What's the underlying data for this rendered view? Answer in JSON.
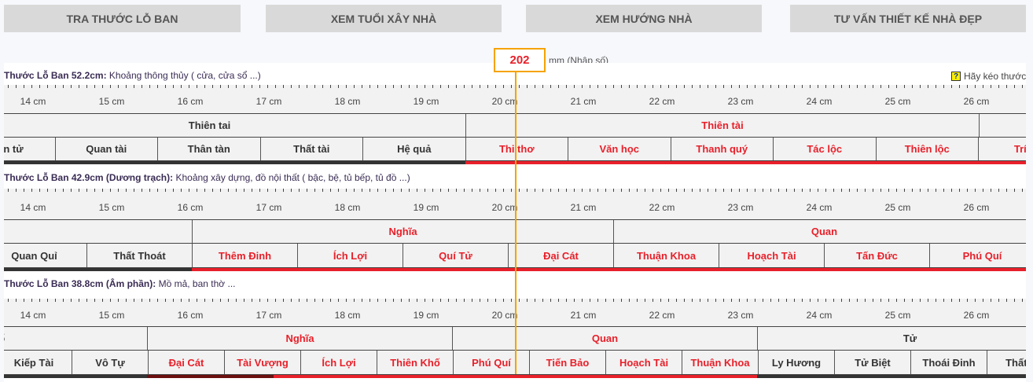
{
  "nav": [
    "TRA THƯỚC LỖ BAN",
    "XEM TUỔI XÂY NHÀ",
    "XEM HƯỚNG NHÀ",
    "TƯ VẤN THIẾT KẾ NHÀ ĐẸP"
  ],
  "input": {
    "value": "202",
    "unit": "mm (Nhập số)"
  },
  "help": "Hãy kéo thước",
  "cm_labels": [
    "14 cm",
    "15 cm",
    "16 cm",
    "17 cm",
    "18 cm",
    "19 cm",
    "20 cm",
    "21 cm",
    "22 cm",
    "23 cm",
    "24 cm",
    "25 cm",
    "26 cm"
  ],
  "colors": {
    "good": "#e8202a",
    "bad": "#333333",
    "marker": "#f5a300"
  },
  "rulers": [
    {
      "title_bold": "Thước Lỗ Ban 52.2cm:",
      "title_rest": " Khoảng thông thủy ( cửa, cửa sổ ...)",
      "groups": [
        "Thiên tai",
        "Thiên tài",
        ""
      ],
      "cells": [
        "Hoàn tử",
        "Quan tài",
        "Thân tàn",
        "Thất tài",
        "Hệ quả",
        "Thi thơ",
        "Văn học",
        "Thanh quý",
        "Tác lộc",
        "Thiên lộc",
        "Trí tồn"
      ]
    },
    {
      "title_bold": "Thước Lỗ Ban 42.9cm (Dương trạch):",
      "title_rest": " Khoảng xây dựng, đồ nội thất ( bậc, bệ, tủ bếp, tủ đồ ...)",
      "groups": [
        "",
        "Nghĩa",
        "Quan"
      ],
      "cells": [
        "Quan Quỉ",
        "Thất Thoát",
        "Thêm Đinh",
        "Ích Lợi",
        "Quí Tử",
        "Đại Cát",
        "Thuận Khoa",
        "Hoạch Tài",
        "Tấn Đức",
        "Phú Quí"
      ]
    },
    {
      "title_bold": "Thước Lỗ Ban 38.8cm (Âm phần):",
      "title_rest": " Mồ mả, ban thờ ...",
      "groups": [
        "Khổ",
        "Nghĩa",
        "Quan",
        "Tử"
      ],
      "cells": [
        "Kiếp Tài",
        "Vô Tự",
        "Đại Cát",
        "Tài Vượng",
        "Ích Lợi",
        "Thiên Khố",
        "Phú Quí",
        "Tiến Bảo",
        "Hoạch Tài",
        "Thuận Khoa",
        "Ly Hương",
        "Tử Biệt",
        "Thoái Đinh",
        "Thất Tài"
      ]
    }
  ]
}
